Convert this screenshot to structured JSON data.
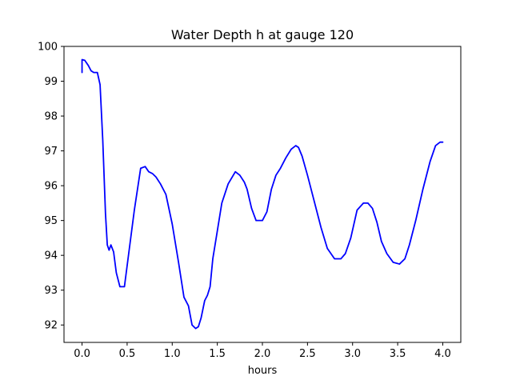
{
  "chart_data": {
    "type": "line",
    "title": "Water Depth h at gauge 120",
    "xlabel": "hours",
    "ylabel": "",
    "xlim": [
      -0.2,
      4.2
    ],
    "ylim": [
      91.5,
      100.0
    ],
    "xticks": [
      0.0,
      0.5,
      1.0,
      1.5,
      2.0,
      2.5,
      3.0,
      3.5,
      4.0
    ],
    "xtick_labels": [
      "0.0",
      "0.5",
      "1.0",
      "1.5",
      "2.0",
      "2.5",
      "3.0",
      "3.5",
      "4.0"
    ],
    "yticks": [
      92,
      93,
      94,
      95,
      96,
      97,
      98,
      99,
      100
    ],
    "ytick_labels": [
      "92",
      "93",
      "94",
      "95",
      "96",
      "97",
      "98",
      "99",
      "100"
    ],
    "grid": false,
    "series": [
      {
        "color": "#0000ff",
        "x": [
          0.0,
          0.0,
          0.03,
          0.07,
          0.1,
          0.13,
          0.17,
          0.2,
          0.23,
          0.26,
          0.28,
          0.3,
          0.32,
          0.35,
          0.38,
          0.42,
          0.47,
          0.52,
          0.58,
          0.65,
          0.7,
          0.74,
          0.78,
          0.82,
          0.87,
          0.93,
          1.0,
          1.07,
          1.13,
          1.18,
          1.22,
          1.26,
          1.29,
          1.32,
          1.36,
          1.39,
          1.42,
          1.45,
          1.5,
          1.55,
          1.62,
          1.7,
          1.75,
          1.8,
          1.83,
          1.88,
          1.93,
          2.0,
          2.05,
          2.1,
          2.15,
          2.2,
          2.26,
          2.32,
          2.37,
          2.4,
          2.44,
          2.5,
          2.58,
          2.65,
          2.72,
          2.8,
          2.87,
          2.92,
          2.98,
          3.05,
          3.12,
          3.17,
          3.22,
          3.27,
          3.32,
          3.38,
          3.45,
          3.52,
          3.58,
          3.63,
          3.7,
          3.78,
          3.86,
          3.92,
          3.97,
          4.0
        ],
        "y": [
          99.25,
          99.62,
          99.6,
          99.45,
          99.3,
          99.25,
          99.25,
          98.9,
          97.3,
          95.2,
          94.3,
          94.15,
          94.3,
          94.1,
          93.5,
          93.1,
          93.1,
          94.1,
          95.3,
          96.5,
          96.55,
          96.4,
          96.35,
          96.25,
          96.05,
          95.75,
          94.9,
          93.8,
          92.8,
          92.55,
          92.0,
          91.9,
          91.95,
          92.2,
          92.7,
          92.85,
          93.1,
          93.9,
          94.7,
          95.5,
          96.05,
          96.4,
          96.3,
          96.1,
          95.9,
          95.35,
          95.0,
          95.0,
          95.25,
          95.9,
          96.3,
          96.5,
          96.8,
          97.05,
          97.15,
          97.1,
          96.85,
          96.3,
          95.5,
          94.8,
          94.2,
          93.9,
          93.9,
          94.05,
          94.5,
          95.3,
          95.5,
          95.5,
          95.35,
          94.95,
          94.4,
          94.05,
          93.8,
          93.75,
          93.9,
          94.3,
          95.0,
          95.9,
          96.7,
          97.15,
          97.25,
          97.25
        ]
      }
    ]
  }
}
